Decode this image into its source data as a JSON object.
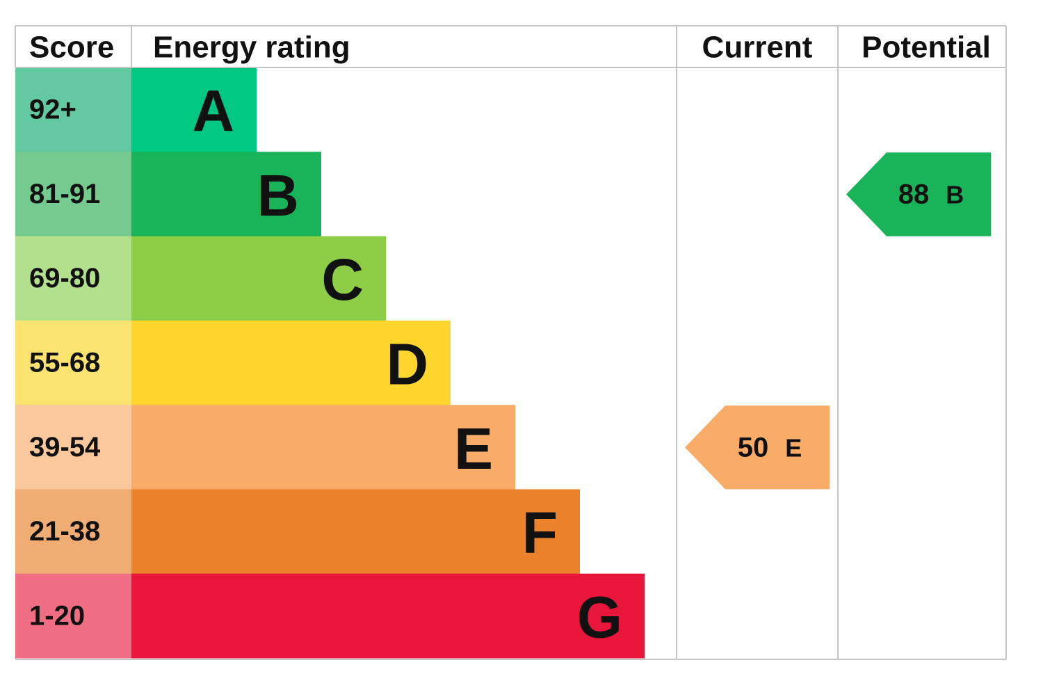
{
  "header": {
    "score": "Score",
    "energy_rating": "Energy rating",
    "current": "Current",
    "potential": "Potential"
  },
  "bands": [
    {
      "score": "92+",
      "letter": "A",
      "color": "#00c781",
      "score_color": "#62c9a1"
    },
    {
      "score": "81-91",
      "letter": "B",
      "color": "#19b459",
      "score_color": "#75ca8f"
    },
    {
      "score": "69-80",
      "letter": "C",
      "color": "#8dce46",
      "score_color": "#b3e08c"
    },
    {
      "score": "55-68",
      "letter": "D",
      "color": "#fed62e",
      "score_color": "#fbe36f"
    },
    {
      "score": "39-54",
      "letter": "E",
      "color": "#f9ac68",
      "score_color": "#f9c89d"
    },
    {
      "score": "21-38",
      "letter": "F",
      "color": "#ed822c",
      "score_color": "#efac73"
    },
    {
      "score": "1-20",
      "letter": "G",
      "color": "#e8163a",
      "score_color": "#f06e84"
    }
  ],
  "current": {
    "score": 50,
    "band": "E"
  },
  "potential": {
    "score": 88,
    "band": "B"
  }
}
